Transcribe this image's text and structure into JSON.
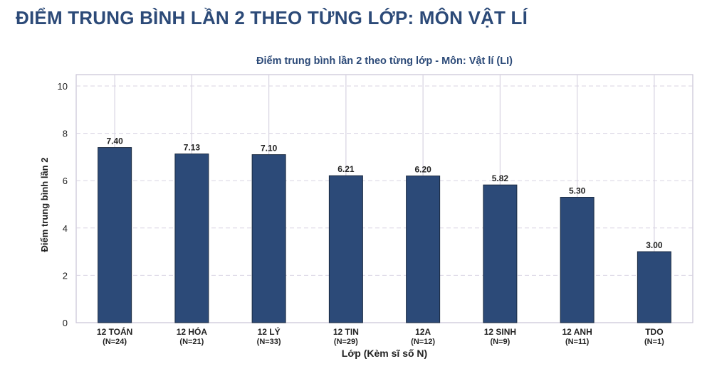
{
  "page": {
    "title": "ĐIỂM TRUNG BÌNH LẦN 2 THEO TỪNG LỚP: MÔN VẬT LÍ"
  },
  "chart_data": {
    "type": "bar",
    "title": "Điểm trung bình lần 2 theo từng lớp - Môn: Vật lí (LI)",
    "xlabel": "Lớp (Kèm sĩ số N)",
    "ylabel": "Điểm trung bình lần 2",
    "categories": [
      "12 TOÁN",
      "12 HÓA",
      "12 LÝ",
      "12 TIN",
      "12A",
      "12 SINH",
      "12 ANH",
      "TDO"
    ],
    "category_counts": [
      "(N=24)",
      "(N=21)",
      "(N=33)",
      "(N=29)",
      "(N=12)",
      "(N=9)",
      "(N=11)",
      "(N=1)"
    ],
    "values": [
      7.4,
      7.13,
      7.1,
      6.21,
      6.2,
      5.82,
      5.3,
      3.0
    ],
    "value_labels": [
      "7.40",
      "7.13",
      "7.10",
      "6.21",
      "6.20",
      "5.82",
      "5.30",
      "3.00"
    ],
    "ylim": [
      0,
      10
    ],
    "yticks": [
      "0",
      "2",
      "4",
      "6",
      "8",
      "10"
    ],
    "grid": true,
    "bar_color": "#2c4a78",
    "title_color": "#2c4a78"
  }
}
